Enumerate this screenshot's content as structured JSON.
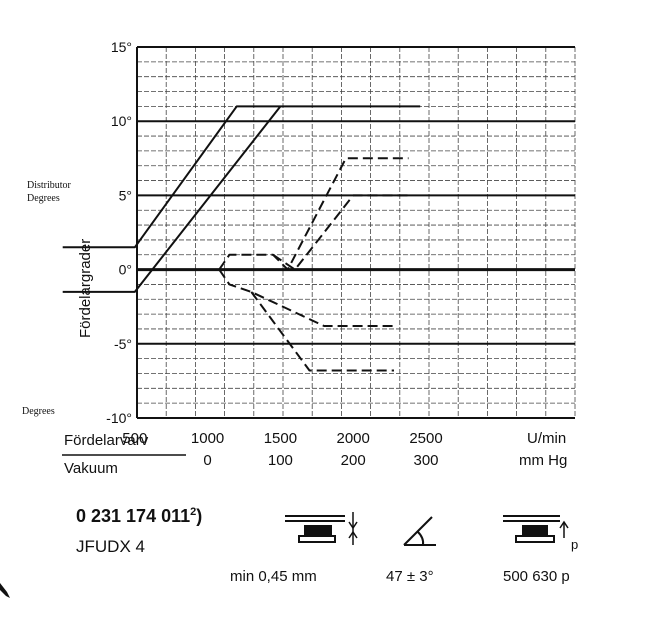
{
  "chart_data": {
    "type": "line",
    "ylabel": "Fördelargrader",
    "ylim": [
      -10,
      15
    ],
    "yticks": [
      {
        "v": 15,
        "label": "15°"
      },
      {
        "v": 10,
        "label": "10°"
      },
      {
        "v": 5,
        "label": "5°"
      },
      {
        "v": 0,
        "label": "0°"
      },
      {
        "v": -5,
        "label": "-5°"
      },
      {
        "v": -10,
        "label": "-10°"
      }
    ],
    "xlim": [
      0,
      2500
    ],
    "xticks": [
      {
        "v": 500,
        "rpm": "500",
        "vac": ""
      },
      {
        "v": 1000,
        "rpm": "1000",
        "vac": "0"
      },
      {
        "v": 1500,
        "rpm": "1500",
        "vac": "100"
      },
      {
        "v": 2000,
        "rpm": "2000",
        "vac": "200"
      },
      {
        "v": 2500,
        "rpm": "2500",
        "vac": "300"
      }
    ],
    "xlabel_rpm": "Fördelarvarv",
    "xlabel_vac": "Vakuum",
    "unit_rpm": "U/min",
    "unit_vac": "mm Hg",
    "grid": true,
    "series": [
      {
        "style": "solid",
        "points": [
          [
            5,
            1.5
          ],
          [
            500,
            1.5
          ],
          [
            1200,
            11
          ],
          [
            2460,
            11
          ]
        ]
      },
      {
        "style": "solid",
        "points": [
          [
            5,
            -1.5
          ],
          [
            500,
            -1.5
          ],
          [
            1500,
            11
          ]
        ]
      },
      {
        "style": "dashed",
        "points": [
          [
            1080,
            0
          ],
          [
            1150,
            1
          ],
          [
            1450,
            1
          ],
          [
            1550,
            0
          ],
          [
            1950,
            7.5
          ],
          [
            2380,
            7.5
          ]
        ]
      },
      {
        "style": "dashed",
        "points": [
          [
            1450,
            1
          ],
          [
            1600,
            0
          ],
          [
            2000,
            5
          ],
          [
            2380,
            5
          ]
        ]
      },
      {
        "style": "dashed",
        "points": [
          [
            1080,
            0
          ],
          [
            1150,
            -1
          ],
          [
            1300,
            -1.5
          ],
          [
            1800,
            -3.8
          ],
          [
            2300,
            -3.8
          ]
        ]
      },
      {
        "style": "dashed",
        "points": [
          [
            1300,
            -1.5
          ],
          [
            1700,
            -6.8
          ],
          [
            2280,
            -6.8
          ]
        ]
      }
    ],
    "annotations": {
      "distributor": "Distributor",
      "degrees_top": "Degrees",
      "degrees_bottom": "Degrees"
    }
  },
  "spec": {
    "part_number": "0 231 174 011",
    "footnote": "2",
    "paren": ")",
    "model": "JFUDX 4",
    "clearance": "min  0,45 mm",
    "angle": "47 ± 3°",
    "pressure": "500    630 p",
    "p_label": "p"
  }
}
